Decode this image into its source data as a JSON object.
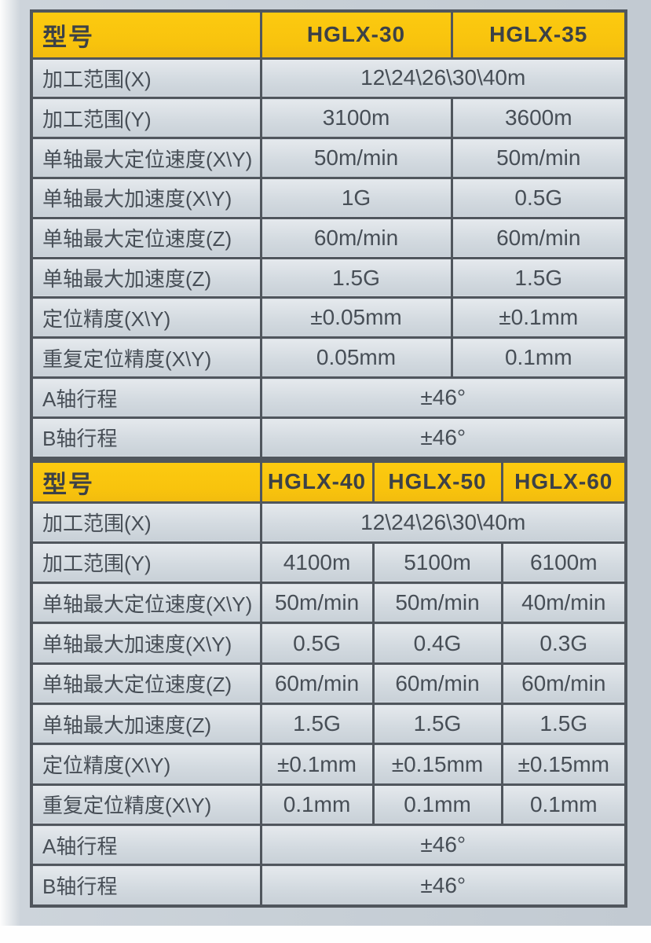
{
  "palette": {
    "header_yellow": "#f8c30d",
    "border_dark": "#50565d",
    "cell_bg_light": "#e5e9ed",
    "cell_bg_dark": "#c8d0d7",
    "cell_text": "#474e56",
    "header_text": "#3c4147",
    "page_bg": "#c5cdd5"
  },
  "tables": [
    {
      "header": {
        "label": "型号",
        "models": [
          "HGLX-30",
          "HGLX-35"
        ]
      },
      "rows": [
        {
          "label": "加工范围(X)",
          "values": [
            "12\\24\\26\\30\\40m"
          ]
        },
        {
          "label": "加工范围(Y)",
          "values": [
            "3100m",
            "3600m"
          ]
        },
        {
          "label": "单轴最大定位速度(X\\Y)",
          "values": [
            "50m/min",
            "50m/min"
          ]
        },
        {
          "label": "单轴最大加速度(X\\Y)",
          "values": [
            "1G",
            "0.5G"
          ]
        },
        {
          "label": "单轴最大定位速度(Z)",
          "values": [
            "60m/min",
            "60m/min"
          ]
        },
        {
          "label": "单轴最大加速度(Z)",
          "values": [
            "1.5G",
            "1.5G"
          ]
        },
        {
          "label": "定位精度(X\\Y)",
          "values": [
            "±0.05mm",
            "±0.1mm"
          ]
        },
        {
          "label": "重复定位精度(X\\Y)",
          "values": [
            "0.05mm",
            "0.1mm"
          ]
        },
        {
          "label": "A轴行程",
          "values": [
            "±46°"
          ]
        },
        {
          "label": "B轴行程",
          "values": [
            "±46°"
          ]
        }
      ]
    },
    {
      "header": {
        "label": "型号",
        "models": [
          "HGLX-40",
          "HGLX-50",
          "HGLX-60"
        ]
      },
      "rows": [
        {
          "label": "加工范围(X)",
          "values": [
            "12\\24\\26\\30\\40m"
          ]
        },
        {
          "label": "加工范围(Y)",
          "values": [
            "4100m",
            "5100m",
            "6100m"
          ]
        },
        {
          "label": "单轴最大定位速度(X\\Y)",
          "values": [
            "50m/min",
            "50m/min",
            "40m/min"
          ]
        },
        {
          "label": "单轴最大加速度(X\\Y)",
          "values": [
            "0.5G",
            "0.4G",
            "0.3G"
          ]
        },
        {
          "label": "单轴最大定位速度(Z)",
          "values": [
            "60m/min",
            "60m/min",
            "60m/min"
          ]
        },
        {
          "label": "单轴最大加速度(Z)",
          "values": [
            "1.5G",
            "1.5G",
            "1.5G"
          ]
        },
        {
          "label": "定位精度(X\\Y)",
          "values": [
            "±0.1mm",
            "±0.15mm",
            "±0.15mm"
          ]
        },
        {
          "label": "重复定位精度(X\\Y)",
          "values": [
            "0.1mm",
            "0.1mm",
            "0.1mm"
          ]
        },
        {
          "label": "A轴行程",
          "values": [
            "±46°"
          ]
        },
        {
          "label": "B轴行程",
          "values": [
            "±46°"
          ]
        }
      ]
    }
  ]
}
